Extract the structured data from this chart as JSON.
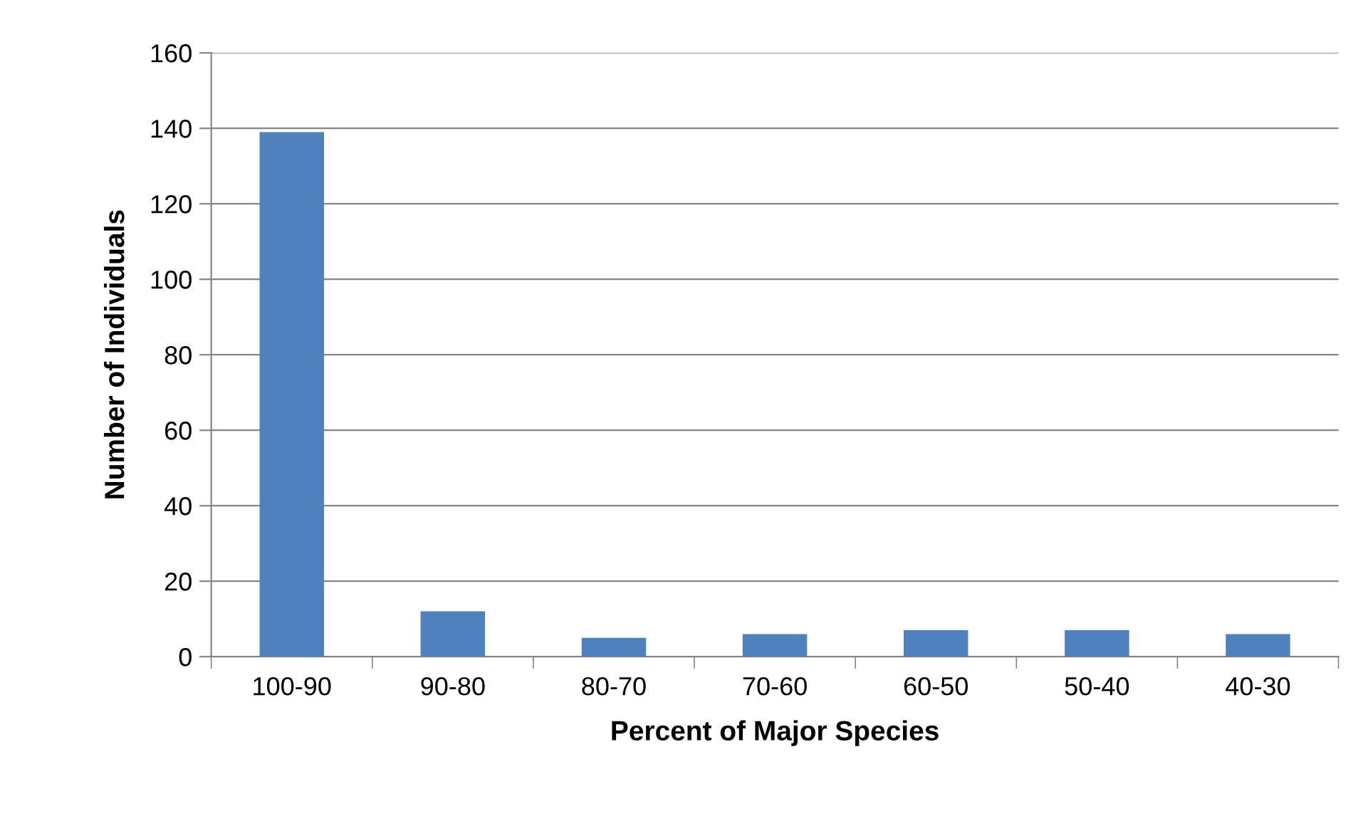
{
  "chart_data": {
    "type": "bar",
    "xlabel": "Percent of Major Species",
    "ylabel": "Number of Individuals",
    "categories": [
      "100-90",
      "90-80",
      "80-70",
      "70-60",
      "60-50",
      "50-40",
      "40-30"
    ],
    "values": [
      139,
      12,
      5,
      6,
      7,
      7,
      6
    ],
    "color": "#4f81bd",
    "ylim": [
      0,
      160
    ],
    "yticks": [
      0,
      20,
      40,
      60,
      80,
      100,
      120,
      140,
      160
    ],
    "grid": "y",
    "legend": false
  }
}
